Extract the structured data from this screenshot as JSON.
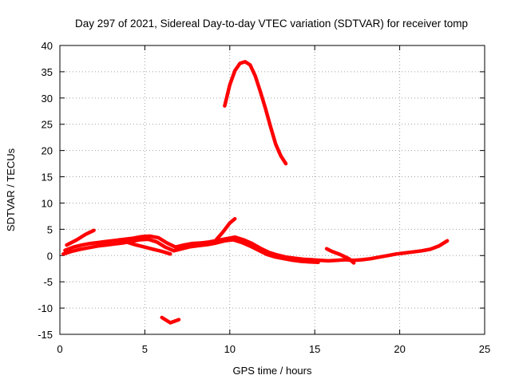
{
  "chart_data": {
    "type": "line",
    "title": "Day 297 of 2021, Sidereal Day-to-day VTEC variation (SDTVAR) for receiver tomp",
    "xlabel": "GPS time / hours",
    "ylabel": "SDTVAR / TECUs",
    "xlim": [
      0,
      25
    ],
    "ylim": [
      -15,
      40
    ],
    "xticks": [
      0,
      5,
      10,
      15,
      20,
      25
    ],
    "yticks": [
      -15,
      -10,
      -5,
      0,
      5,
      10,
      15,
      20,
      25,
      30,
      35,
      40
    ],
    "grid": true,
    "series_color": "#ff0000",
    "series": [
      {
        "name": "segment-1",
        "x": [
          0.3,
          0.8,
          1.3,
          1.8,
          2.3,
          2.8,
          3.3,
          3.8,
          4.3,
          4.8,
          5.3,
          5.8,
          6.3,
          6.8,
          7.3,
          7.8,
          8.3,
          8.8,
          9.3,
          9.8,
          10.3,
          10.8,
          11.3,
          11.8,
          12.3,
          12.8,
          13.3,
          13.8,
          14.3,
          14.8,
          15.3,
          15.8,
          16.3,
          16.8,
          17.3,
          17.8,
          18.3,
          18.8,
          19.3,
          19.8,
          20.3,
          20.8,
          21.3,
          21.8,
          22.3,
          22.8
        ],
        "values": [
          1.0,
          1.6,
          2.0,
          2.3,
          2.5,
          2.7,
          2.9,
          3.1,
          3.3,
          3.6,
          3.7,
          3.4,
          2.4,
          1.6,
          2.0,
          2.3,
          2.4,
          2.6,
          2.9,
          3.2,
          3.5,
          3.0,
          2.3,
          1.4,
          0.6,
          0.1,
          -0.3,
          -0.5,
          -0.7,
          -0.8,
          -0.9,
          -1.0,
          -0.9,
          -0.8,
          -0.9,
          -0.8,
          -0.6,
          -0.3,
          0.0,
          0.3,
          0.5,
          0.7,
          0.9,
          1.2,
          1.8,
          2.8
        ]
      },
      {
        "name": "segment-2",
        "x": [
          0.2,
          0.7,
          1.2,
          1.7,
          2.2,
          2.7,
          3.2,
          3.7,
          4.2,
          4.7,
          5.2,
          5.7,
          6.2,
          6.7,
          7.2,
          7.7,
          8.2,
          8.7,
          9.2,
          9.7,
          10.2,
          10.7,
          11.2,
          11.7,
          12.2,
          12.7,
          13.2,
          13.7,
          14.2,
          14.7,
          15.2
        ],
        "values": [
          0.3,
          0.8,
          1.2,
          1.5,
          1.8,
          2.0,
          2.2,
          2.4,
          2.7,
          3.0,
          3.1,
          2.6,
          1.6,
          0.9,
          1.3,
          1.7,
          1.9,
          2.1,
          2.4,
          2.8,
          3.0,
          2.5,
          1.8,
          1.0,
          0.2,
          -0.3,
          -0.6,
          -0.9,
          -1.1,
          -1.2,
          -1.3
        ]
      },
      {
        "name": "segment-3",
        "x": [
          0.4,
          1.0,
          1.5,
          2.0
        ],
        "values": [
          2.0,
          3.0,
          4.0,
          4.8
        ]
      },
      {
        "name": "segment-4",
        "x": [
          3.5,
          4.0,
          4.5,
          5.0,
          5.5,
          6.0,
          6.5
        ],
        "values": [
          3.0,
          2.5,
          2.0,
          1.6,
          1.2,
          0.8,
          0.3
        ]
      },
      {
        "name": "segment-5",
        "x": [
          9.2,
          9.6,
          10.0,
          10.3
        ],
        "values": [
          3.0,
          4.5,
          6.2,
          7.0
        ]
      },
      {
        "name": "segment-6",
        "x": [
          9.7,
          10.0,
          10.3,
          10.6,
          10.9,
          11.2,
          11.5,
          11.8,
          12.1,
          12.4,
          12.7,
          13.0,
          13.3
        ],
        "values": [
          28.5,
          32.5,
          35.2,
          36.6,
          36.9,
          36.3,
          34.2,
          31.2,
          28.0,
          24.5,
          21.2,
          19.0,
          17.5
        ]
      },
      {
        "name": "segment-7",
        "x": [
          6.0,
          6.5,
          7.0
        ],
        "values": [
          -11.8,
          -12.8,
          -12.2
        ]
      },
      {
        "name": "segment-8",
        "x": [
          15.7,
          16.0,
          16.5,
          17.0,
          17.3
        ],
        "values": [
          1.3,
          0.8,
          0.2,
          -0.6,
          -1.4
        ]
      }
    ]
  }
}
